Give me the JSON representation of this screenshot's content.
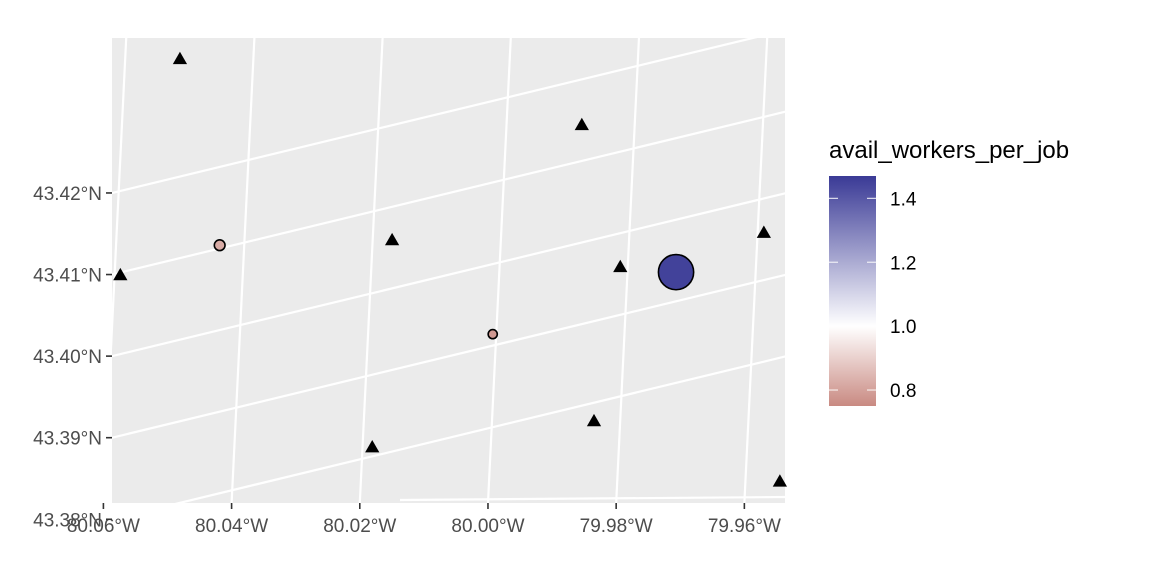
{
  "chart_data": {
    "type": "scatter",
    "title": "",
    "xlabel": "",
    "ylabel": "",
    "xlim": [
      -80.0605,
      -79.9555
    ],
    "ylim": [
      43.3705,
      43.4275
    ],
    "x_ticks": [
      {
        "value": -80.06,
        "label": "80.06°W"
      },
      {
        "value": -80.04,
        "label": "80.04°W"
      },
      {
        "value": -80.02,
        "label": "80.02°W"
      },
      {
        "value": -80.0,
        "label": "80.00°W"
      },
      {
        "value": -79.98,
        "label": "79.98°W"
      },
      {
        "value": -79.96,
        "label": "79.96°W"
      }
    ],
    "y_ticks": [
      {
        "value": 43.38,
        "label": "43.38°N"
      },
      {
        "value": 43.39,
        "label": "43.39°N"
      },
      {
        "value": 43.4,
        "label": "43.40°N"
      },
      {
        "value": 43.41,
        "label": "43.41°N"
      },
      {
        "value": 43.42,
        "label": "43.42°N"
      }
    ],
    "grid": true,
    "series": [
      {
        "shape": "triangle",
        "color": "#000000",
        "points": [
          {
            "lon": -80.0499,
            "lat": 43.4249
          },
          {
            "lon": -80.0592,
            "lat": 43.3984
          },
          {
            "lon": -80.0168,
            "lat": 43.4027
          },
          {
            "lon": -80.0199,
            "lat": 43.3773
          },
          {
            "lon": -79.9872,
            "lat": 43.4168
          },
          {
            "lon": -79.9812,
            "lat": 43.3994
          },
          {
            "lon": -79.9853,
            "lat": 43.3805
          },
          {
            "lon": -79.9588,
            "lat": 43.4036
          },
          {
            "lon": -79.9563,
            "lat": 43.3731
          }
        ]
      },
      {
        "shape": "circle",
        "color_by": "avail_workers_per_job",
        "points": [
          {
            "lon": -80.0437,
            "lat": 43.4021,
            "avail_workers_per_job": 0.82
          },
          {
            "lon": -80.0011,
            "lat": 43.3912,
            "avail_workers_per_job": 0.78
          },
          {
            "lon": -79.9725,
            "lat": 43.3988,
            "avail_workers_per_job": 1.45
          }
        ]
      }
    ],
    "legend": {
      "title": "avail_workers_per_job",
      "placement": "right",
      "range": [
        0.75,
        1.47
      ],
      "ticks": [
        {
          "value": 0.8,
          "label": "0.8"
        },
        {
          "value": 1.0,
          "label": "1.0"
        },
        {
          "value": 1.2,
          "label": "1.2"
        },
        {
          "value": 1.4,
          "label": "1.4"
        }
      ],
      "colors": {
        "low": "#c98a82",
        "mid": "#ffffff",
        "high": "#3a3a96"
      },
      "midpoint": 1.0
    },
    "panel_background": "#ebebeb",
    "grid_color": "#ffffff"
  }
}
